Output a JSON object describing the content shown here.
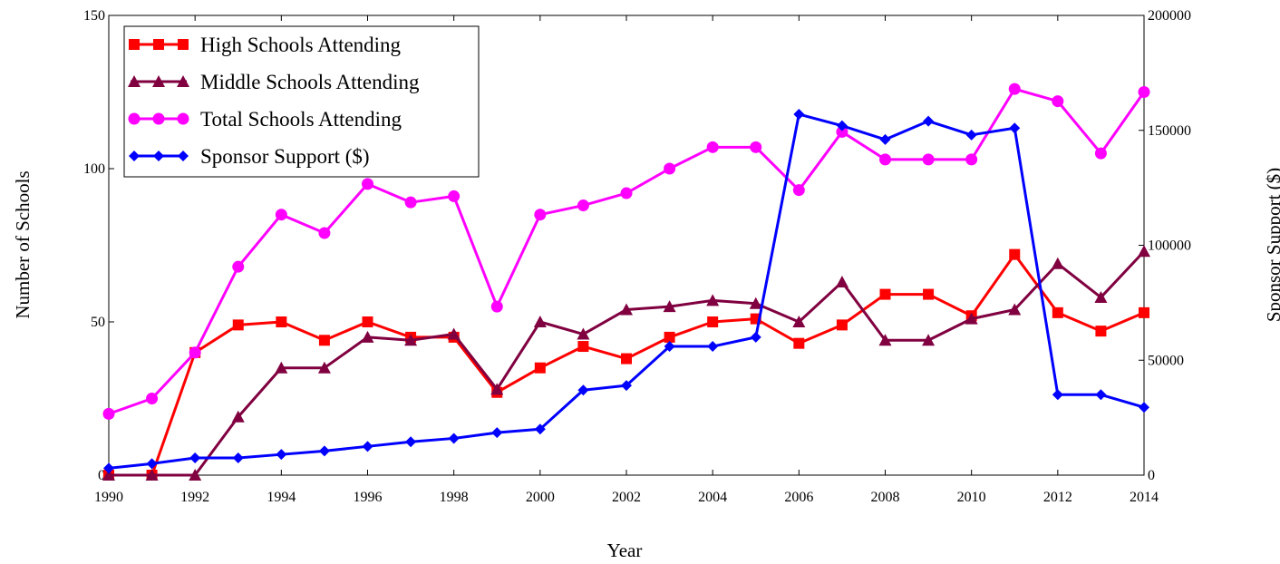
{
  "chart_data": {
    "type": "line",
    "x": [
      1990,
      1991,
      1992,
      1993,
      1994,
      1995,
      1996,
      1997,
      1998,
      1999,
      2000,
      2001,
      2002,
      2003,
      2004,
      2005,
      2006,
      2007,
      2008,
      2009,
      2010,
      2011,
      2012,
      2013,
      2014
    ],
    "xlabel": "Year",
    "ylabel": "Number of Schools",
    "y2label": "Sponsor Support ($)",
    "xlim": [
      1990,
      2014
    ],
    "ylim": [
      0,
      150
    ],
    "y2lim": [
      0,
      200000
    ],
    "xticks": [
      1990,
      1992,
      1994,
      1996,
      1998,
      2000,
      2002,
      2004,
      2006,
      2008,
      2010,
      2012,
      2014
    ],
    "yticks": [
      0,
      50,
      100,
      150
    ],
    "y2ticks": [
      0,
      50000,
      100000,
      150000,
      200000
    ],
    "grid": false,
    "legend_position": "top-left",
    "series": [
      {
        "name": "High Schools Attending",
        "axis": "left",
        "color": "#ff0000",
        "marker": "square",
        "values": [
          0,
          0,
          40,
          49,
          50,
          44,
          50,
          45,
          45,
          27,
          35,
          42,
          38,
          45,
          50,
          51,
          43,
          49,
          59,
          59,
          52,
          72,
          53,
          47,
          53
        ]
      },
      {
        "name": "Middle Schools Attending",
        "axis": "left",
        "color": "#800040",
        "marker": "triangle",
        "values": [
          0,
          0,
          0,
          19,
          35,
          35,
          45,
          44,
          46,
          28,
          50,
          46,
          54,
          55,
          57,
          56,
          50,
          63,
          44,
          44,
          51,
          54,
          69,
          58,
          73
        ]
      },
      {
        "name": "Total Schools Attending",
        "axis": "left",
        "color": "#ff00ff",
        "marker": "circle",
        "values": [
          20,
          25,
          40,
          68,
          85,
          79,
          95,
          89,
          91,
          55,
          85,
          88,
          92,
          100,
          107,
          107,
          93,
          112,
          103,
          103,
          103,
          126,
          122,
          105,
          125
        ]
      },
      {
        "name": "Sponsor Support ($)",
        "axis": "right",
        "color": "#0000ff",
        "marker": "diamond",
        "values": [
          3000,
          5000,
          7500,
          7500,
          9000,
          10500,
          12500,
          14500,
          16000,
          18500,
          20000,
          37000,
          39000,
          56000,
          56000,
          60000,
          157000,
          152000,
          146000,
          154000,
          148000,
          151000,
          35000,
          35000,
          29500
        ]
      }
    ]
  }
}
